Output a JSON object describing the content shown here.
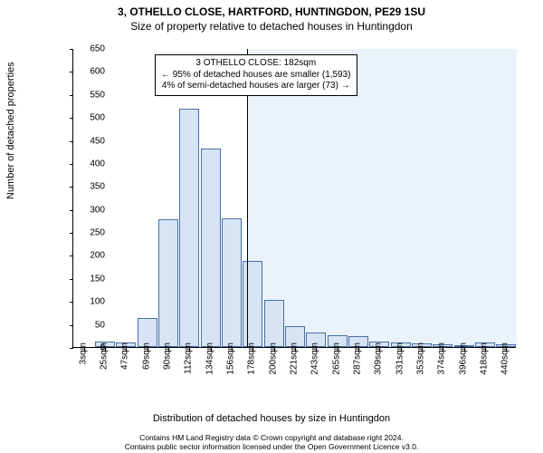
{
  "title": {
    "line1": "3, OTHELLO CLOSE, HARTFORD, HUNTINGDON, PE29 1SU",
    "line2": "Size of property relative to detached houses in Huntingdon"
  },
  "chart": {
    "type": "histogram",
    "ylabel": "Number of detached properties",
    "xlabel": "Distribution of detached houses by size in Huntingdon",
    "ylim": [
      0,
      650
    ],
    "yticks": [
      0,
      50,
      100,
      150,
      200,
      250,
      300,
      350,
      400,
      450,
      500,
      550,
      600,
      650
    ],
    "xtick_labels": [
      "3sqm",
      "25sqm",
      "47sqm",
      "69sqm",
      "90sqm",
      "112sqm",
      "134sqm",
      "156sqm",
      "178sqm",
      "200sqm",
      "221sqm",
      "243sqm",
      "265sqm",
      "287sqm",
      "309sqm",
      "331sqm",
      "353sqm",
      "374sqm",
      "396sqm",
      "418sqm",
      "440sqm"
    ],
    "bar_values": [
      0,
      12,
      10,
      63,
      278,
      518,
      432,
      280,
      188,
      103,
      45,
      32,
      25,
      23,
      12,
      10,
      8,
      5,
      2,
      10,
      5
    ],
    "bar_fill": "#d6e4f5",
    "bar_border": "#4a6fa5",
    "background_color": "#ffffff",
    "shaded_color": "#eaf2fb",
    "shaded_from_index": 8,
    "marker_value_sqm": 182,
    "callout": {
      "line1": "3 OTHELLO CLOSE: 182sqm",
      "line2": "← 95% of detached houses are smaller (1,593)",
      "line3": "4% of semi-detached houses are larger (73) →"
    },
    "label_fontsize": 11,
    "tick_fontsize": 10,
    "title_fontsize": 12
  },
  "footer": {
    "line1": "Contains HM Land Registry data © Crown copyright and database right 2024.",
    "line2": "Contains public sector information licensed under the Open Government Licence v3.0."
  }
}
